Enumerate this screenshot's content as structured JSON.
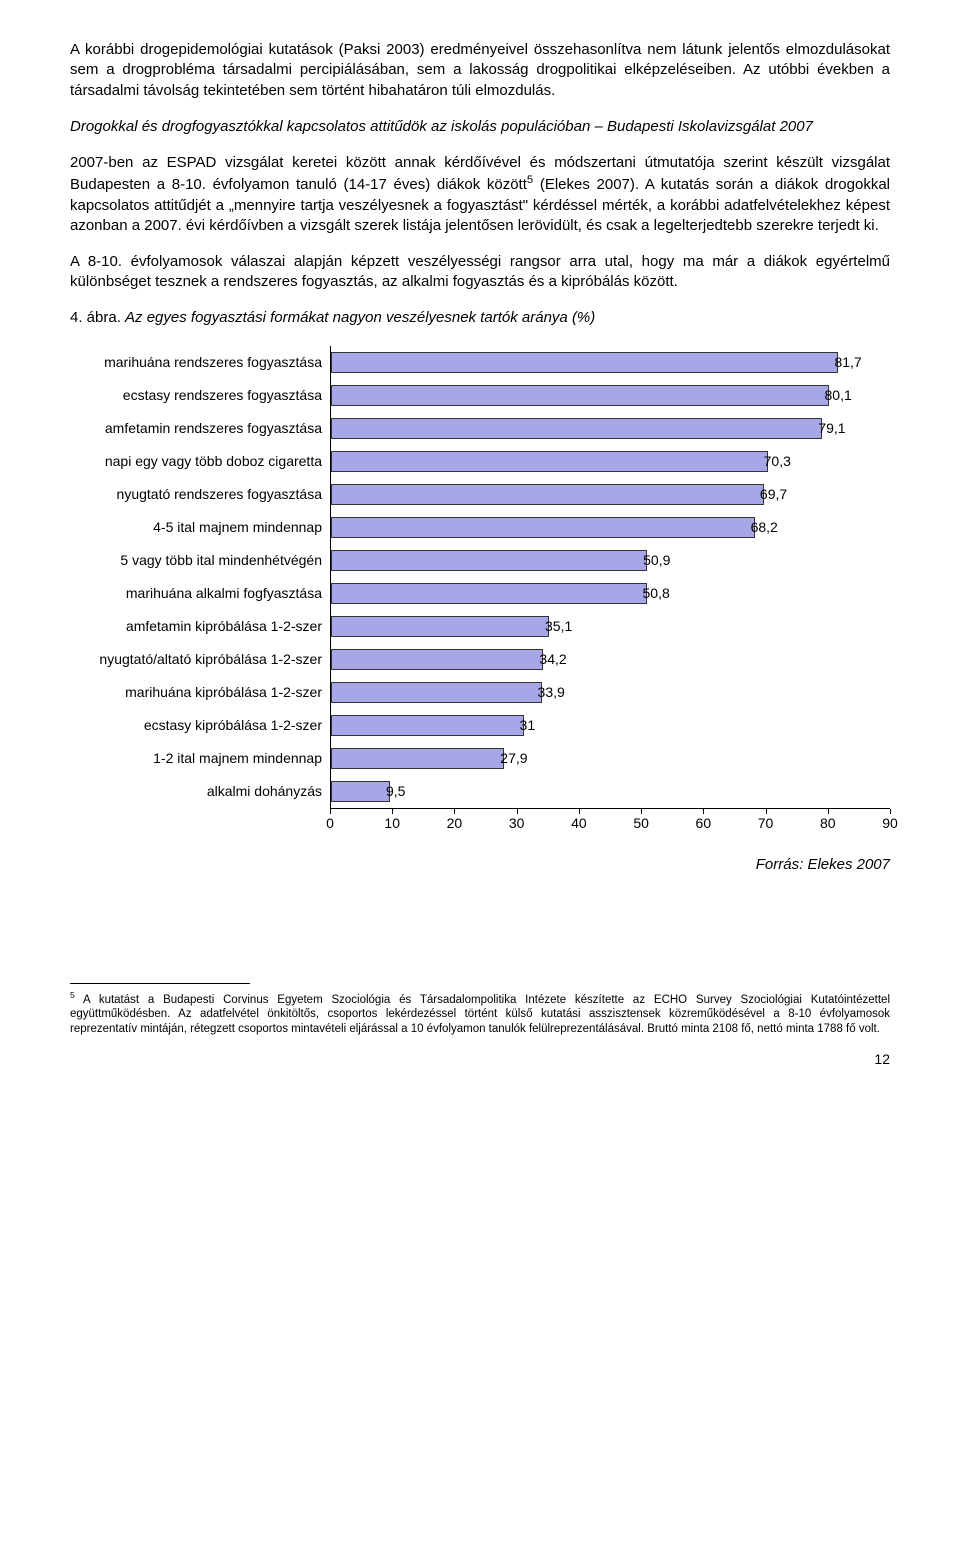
{
  "paragraphs": {
    "p1": "A korábbi drogepidemológiai kutatások (Paksi 2003) eredményeivel összehasonlítva nem látunk jelentős elmozdulásokat sem a drogprobléma társadalmi percipiálásában, sem a lakosság drogpolitikai elképzeléseiben. Az utóbbi években a társadalmi távolság tekintetében sem történt hibahatáron túli elmozdulás.",
    "p2": "Drogokkal és drogfogyasztókkal kapcsolatos attitűdök az iskolás populációban – Budapesti Iskolavizsgálat 2007",
    "p3a": "2007-ben az ESPAD vizsgálat keretei között annak kérdőívével és módszertani útmutatója szerint készült vizsgálat Budapesten a 8-10. évfolyamon tanuló (14-17 éves) diákok között",
    "p3b": " (Elekes 2007). A kutatás során a diákok drogokkal kapcsolatos attitűdjét a „mennyire tartja veszélyesnek a fogyasztást\" kérdéssel mérték, a korábbi adatfelvételekhez képest azonban a 2007. évi kérdőívben a vizsgált szerek listája jelentősen lerövidült, és csak a legelterjedtebb szerekre terjedt ki.",
    "p4": "A 8-10. évfolyamosok válaszai alapján képzett veszélyességi rangsor arra utal, hogy ma már a diákok egyértelmű különbséget tesznek a rendszeres fogyasztás, az alkalmi fogyasztás és a kipróbálás között.",
    "sup5": "5"
  },
  "chart": {
    "title_prefix": "4. ábra. ",
    "title_italic": "Az egyes fogyasztási formákat nagyon veszélyesnek tartók aránya (%)",
    "type": "bar-horizontal",
    "bar_color": "#a7a7e8",
    "bar_border": "#333333",
    "background_color": "#ffffff",
    "xlim_min": 0,
    "xlim_max": 90,
    "xtick_step": 10,
    "label_fontsize": 14,
    "value_fontsize": 14,
    "items": [
      {
        "label": "marihuána rendszeres fogyasztása",
        "value": 81.7,
        "display": "81,7"
      },
      {
        "label": "ecstasy rendszeres fogyasztása",
        "value": 80.1,
        "display": "80,1"
      },
      {
        "label": "amfetamin rendszeres fogyasztása",
        "value": 79.1,
        "display": "79,1"
      },
      {
        "label": "napi egy vagy több doboz cigaretta",
        "value": 70.3,
        "display": "70,3"
      },
      {
        "label": "nyugtató rendszeres fogyasztása",
        "value": 69.7,
        "display": "69,7"
      },
      {
        "label": "4-5 ital majnem mindennap",
        "value": 68.2,
        "display": "68,2"
      },
      {
        "label": "5 vagy több ital mindenhétvégén",
        "value": 50.9,
        "display": "50,9"
      },
      {
        "label": "marihuána alkalmi fogfyasztása",
        "value": 50.8,
        "display": "50,8"
      },
      {
        "label": "amfetamin kipróbálása 1-2-szer",
        "value": 35.1,
        "display": "35,1"
      },
      {
        "label": "nyugtató/altató kipróbálása 1-2-szer",
        "value": 34.2,
        "display": "34,2"
      },
      {
        "label": "marihuána kipróbálása 1-2-szer",
        "value": 33.9,
        "display": "33,9"
      },
      {
        "label": "ecstasy kipróbálása 1-2-szer",
        "value": 31.0,
        "display": "31"
      },
      {
        "label": "1-2 ital majnem mindennap",
        "value": 27.9,
        "display": "27,9"
      },
      {
        "label": "alkalmi dohányzás",
        "value": 9.5,
        "display": "9,5"
      }
    ],
    "xticks": [
      {
        "v": 0,
        "label": "0"
      },
      {
        "v": 10,
        "label": "10"
      },
      {
        "v": 20,
        "label": "20"
      },
      {
        "v": 30,
        "label": "30"
      },
      {
        "v": 40,
        "label": "40"
      },
      {
        "v": 50,
        "label": "50"
      },
      {
        "v": 60,
        "label": "60"
      },
      {
        "v": 70,
        "label": "70"
      },
      {
        "v": 80,
        "label": "80"
      },
      {
        "v": 90,
        "label": "90"
      }
    ]
  },
  "source": "Forrás: Elekes 2007",
  "footnote": {
    "marker": "5",
    "text": " A kutatást a Budapesti Corvinus Egyetem Szociológia és Társadalompolitika Intézete készítette az ECHO Survey Szociológiai Kutatóintézettel együttműködésben. Az adatfelvétel önkitöltős, csoportos lekérdezéssel történt külső kutatási asszisztensek közreműködésével a 8-10 évfolyamosok reprezentatív mintáján, rétegzett csoportos mintavételi eljárással a 10 évfolyamon tanulók felülreprezentálásával. Bruttó minta 2108 fő, nettó minta 1788 fő volt."
  },
  "page_number": "12"
}
